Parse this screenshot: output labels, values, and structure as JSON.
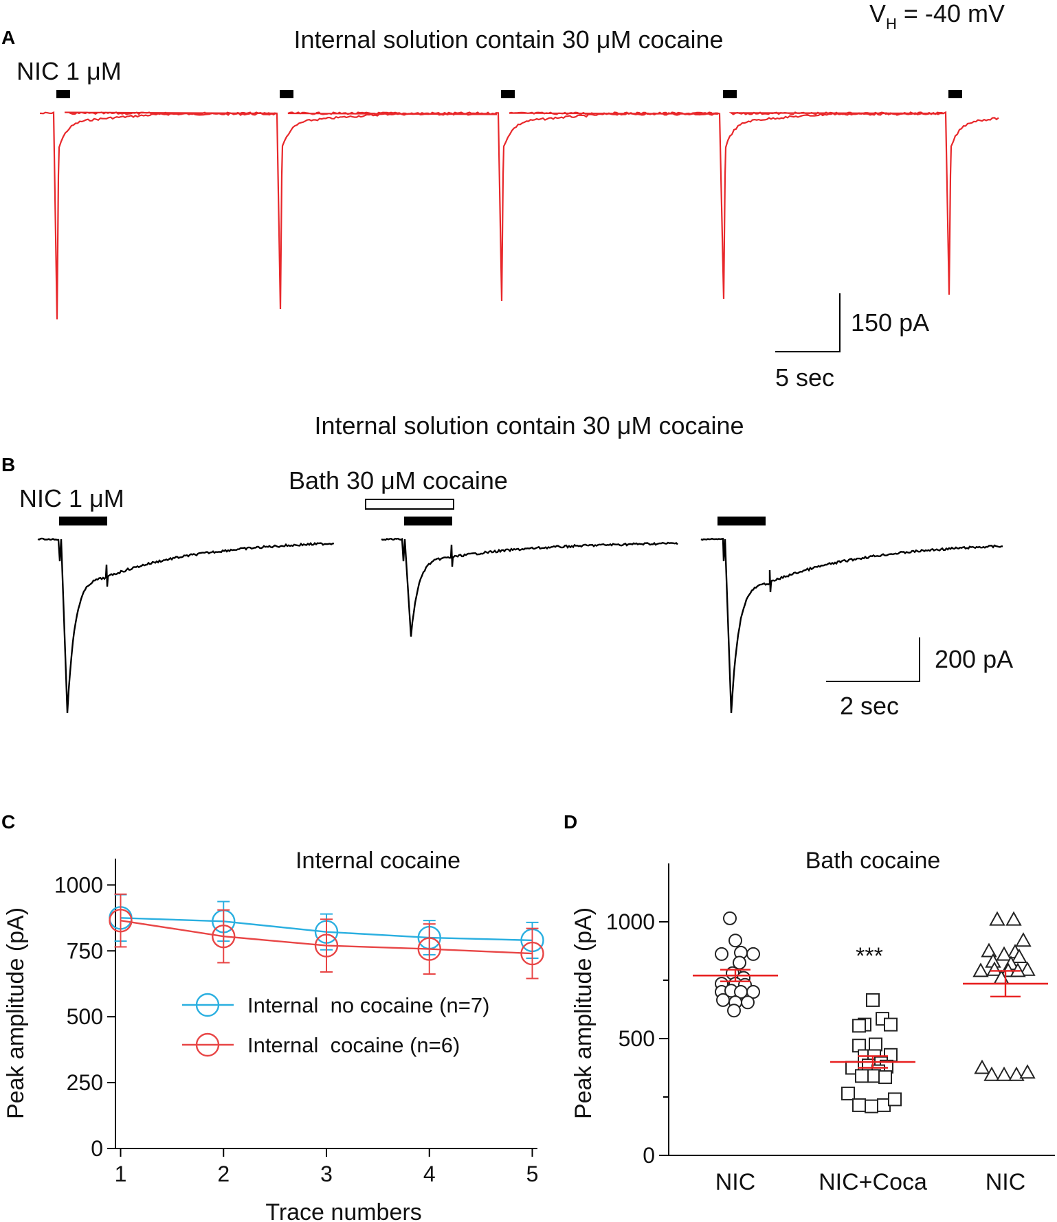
{
  "panel_a": {
    "letter": "A",
    "title": "Internal solution contain 30 μM cocaine",
    "holding_label": "V",
    "holding_sub": "H",
    "holding_value": " = -40 mV",
    "drug_label": "NIC 1 μM",
    "scale_y": "150 pA",
    "scale_x": "5 sec",
    "trace_color": "#e8282b",
    "peaks": [
      {
        "application": 1,
        "relative_amplitude": 1.0
      },
      {
        "application": 2,
        "relative_amplitude": 0.95
      },
      {
        "application": 3,
        "relative_amplitude": 0.91
      },
      {
        "application": 4,
        "relative_amplitude": 0.9
      },
      {
        "application": 5,
        "relative_amplitude": 0.88
      }
    ]
  },
  "panel_b": {
    "letter": "B",
    "title": "Internal solution contain 30 μM cocaine",
    "drug_label": "NIC 1 μM",
    "bath_label": "Bath 30 μM cocaine",
    "scale_y": "200 pA",
    "scale_x": "2 sec",
    "trace_color": "#000000",
    "peaks": [
      {
        "condition": "NIC",
        "relative_amplitude": 1.0
      },
      {
        "condition": "NIC + bath cocaine",
        "relative_amplitude": 0.56
      },
      {
        "condition": "NIC",
        "relative_amplitude": 1.0
      }
    ]
  },
  "chart_data": [
    {
      "panel": "C",
      "type": "line",
      "title": "Internal cocaine",
      "xlabel": "Trace numbers",
      "ylabel": "Peak amplitude (pA)",
      "x": [
        1,
        2,
        3,
        4,
        5
      ],
      "xlim": [
        0.95,
        5.05
      ],
      "ylim": [
        0,
        1100
      ],
      "yticks": [
        0,
        250,
        500,
        750,
        1000
      ],
      "series": [
        {
          "name": "Internal  no cocaine (n=7)",
          "color": "#2aafe0",
          "values": [
            875,
            862,
            822,
            800,
            790
          ],
          "errors": [
            88,
            75,
            68,
            65,
            68
          ]
        },
        {
          "name": "Internal  cocaine (n=6)",
          "color": "#e84545",
          "values": [
            865,
            805,
            770,
            757,
            740
          ],
          "errors": [
            100,
            100,
            100,
            95,
            95
          ]
        }
      ],
      "legend_position": "center"
    },
    {
      "panel": "D",
      "type": "scatter",
      "title": "Bath cocaine",
      "ylabel": "Peak amplitude (pA)",
      "categories": [
        "NIC",
        "NIC+Coca",
        "NIC"
      ],
      "ylim": [
        0,
        1250
      ],
      "yticks": [
        0,
        500,
        1000
      ],
      "annotation": "***",
      "mean_color": "#e82020",
      "groups": [
        {
          "category": "NIC",
          "marker": "circle",
          "mean": 770,
          "sem": 25,
          "points": [
            {
              "x": -0.08,
              "y": 1015
            },
            {
              "x": 0.0,
              "y": 920
            },
            {
              "x": -0.2,
              "y": 862
            },
            {
              "x": 0.08,
              "y": 868
            },
            {
              "x": 0.26,
              "y": 862
            },
            {
              "x": 0.06,
              "y": 825
            },
            {
              "x": 0.0,
              "y": 775
            },
            {
              "x": -0.04,
              "y": 780
            },
            {
              "x": 0.12,
              "y": 760
            },
            {
              "x": -0.2,
              "y": 735
            },
            {
              "x": 0.0,
              "y": 735
            },
            {
              "x": 0.14,
              "y": 730
            },
            {
              "x": 0.26,
              "y": 700
            },
            {
              "x": -0.2,
              "y": 700
            },
            {
              "x": -0.06,
              "y": 705
            },
            {
              "x": 0.08,
              "y": 700
            },
            {
              "x": -0.18,
              "y": 665
            },
            {
              "x": 0.0,
              "y": 655
            },
            {
              "x": 0.18,
              "y": 655
            },
            {
              "x": -0.02,
              "y": 620
            }
          ]
        },
        {
          "category": "NIC+Coca",
          "marker": "square",
          "mean": 400,
          "sem": 25,
          "points": [
            {
              "x": 0.0,
              "y": 665
            },
            {
              "x": -0.12,
              "y": 560
            },
            {
              "x": -0.2,
              "y": 555
            },
            {
              "x": 0.14,
              "y": 585
            },
            {
              "x": 0.26,
              "y": 560
            },
            {
              "x": -0.2,
              "y": 470
            },
            {
              "x": 0.04,
              "y": 475
            },
            {
              "x": 0.26,
              "y": 430
            },
            {
              "x": -0.12,
              "y": 425
            },
            {
              "x": 0.02,
              "y": 425
            },
            {
              "x": 0.12,
              "y": 395
            },
            {
              "x": 0.2,
              "y": 380
            },
            {
              "x": -0.3,
              "y": 375
            },
            {
              "x": -0.06,
              "y": 385
            },
            {
              "x": 0.08,
              "y": 360
            },
            {
              "x": -0.16,
              "y": 340
            },
            {
              "x": 0.02,
              "y": 340
            },
            {
              "x": 0.18,
              "y": 335
            },
            {
              "x": -0.36,
              "y": 265
            },
            {
              "x": -0.2,
              "y": 215
            },
            {
              "x": -0.02,
              "y": 210
            },
            {
              "x": 0.16,
              "y": 215
            },
            {
              "x": 0.32,
              "y": 240
            }
          ]
        },
        {
          "category": "NIC",
          "marker": "triangle",
          "mean": 735,
          "sem": 55,
          "points": [
            {
              "x": -0.12,
              "y": 1010
            },
            {
              "x": 0.12,
              "y": 1010
            },
            {
              "x": 0.26,
              "y": 920
            },
            {
              "x": -0.24,
              "y": 875
            },
            {
              "x": 0.14,
              "y": 870
            },
            {
              "x": -0.02,
              "y": 860
            },
            {
              "x": 0.2,
              "y": 850
            },
            {
              "x": -0.18,
              "y": 830
            },
            {
              "x": 0.08,
              "y": 820
            },
            {
              "x": 0.32,
              "y": 795
            },
            {
              "x": -0.36,
              "y": 790
            },
            {
              "x": -0.16,
              "y": 795
            },
            {
              "x": 0.04,
              "y": 790
            },
            {
              "x": 0.18,
              "y": 790
            },
            {
              "x": -0.06,
              "y": 760
            },
            {
              "x": -0.34,
              "y": 375
            },
            {
              "x": -0.2,
              "y": 345
            },
            {
              "x": -0.02,
              "y": 345
            },
            {
              "x": 0.16,
              "y": 345
            },
            {
              "x": 0.32,
              "y": 355
            }
          ]
        }
      ]
    }
  ]
}
